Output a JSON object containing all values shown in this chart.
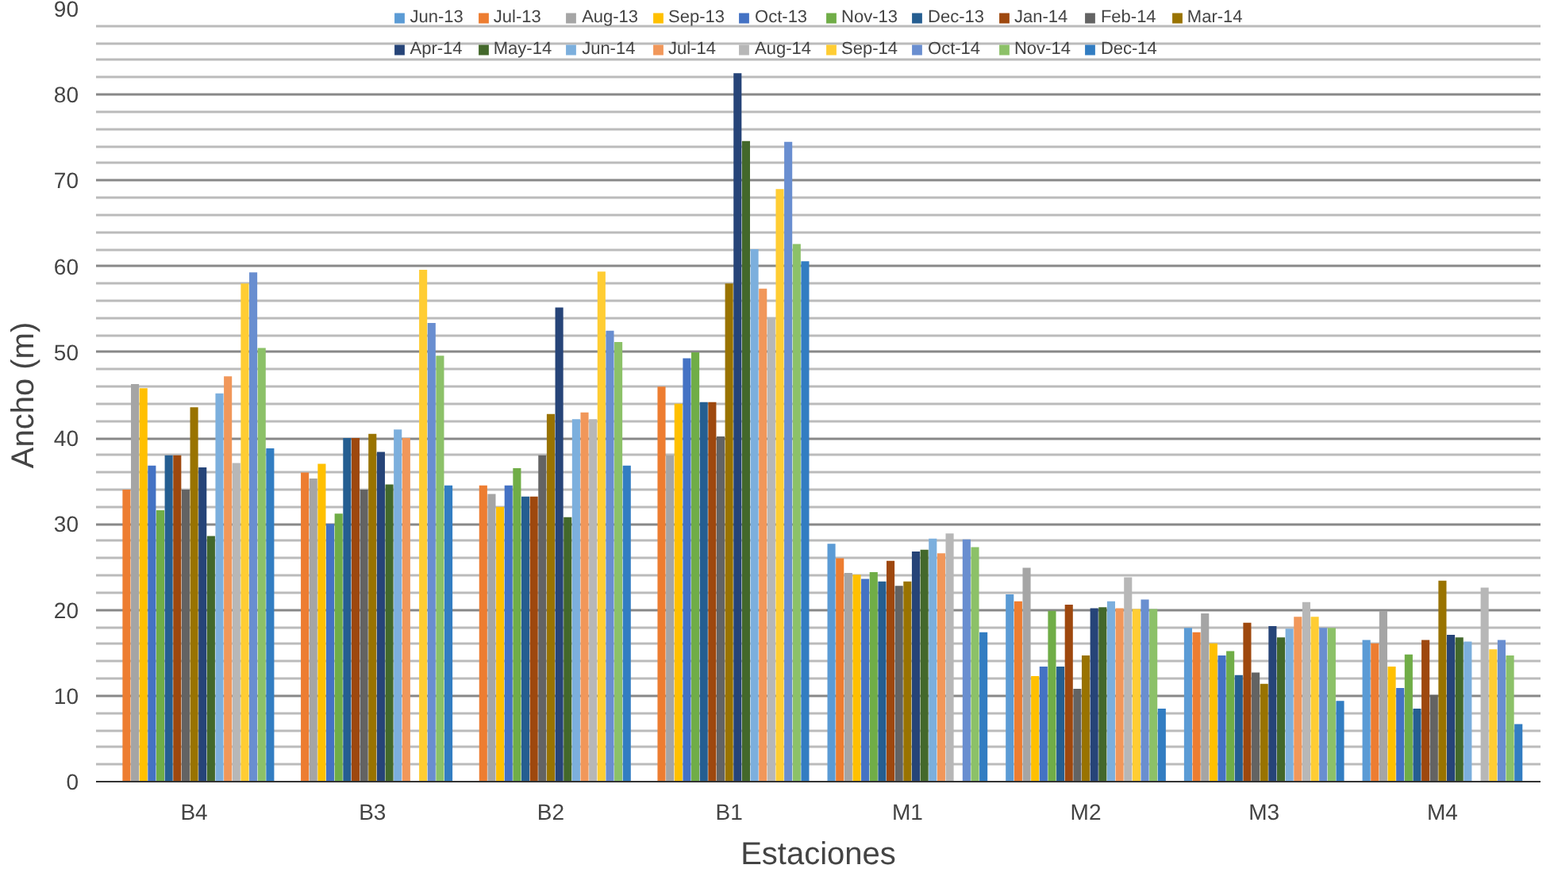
{
  "chart_data": {
    "type": "bar",
    "xlabel": "Estaciones",
    "ylabel": "Ancho (m)",
    "categories": [
      "B4",
      "B3",
      "B2",
      "B1",
      "M1",
      "M2",
      "M3",
      "M4"
    ],
    "ylim": [
      0,
      90
    ],
    "yticks": [
      0,
      10,
      20,
      30,
      40,
      50,
      60,
      70,
      80,
      90
    ],
    "grid": "y",
    "legend": "top",
    "series": [
      {
        "name": "Jun-13",
        "color": "#5b9bd5",
        "values": [
          null,
          null,
          null,
          null,
          27.7,
          21.8,
          17.9,
          16.5
        ]
      },
      {
        "name": "Jul-13",
        "color": "#ed7d31",
        "values": [
          34,
          36,
          34.5,
          46,
          26,
          21,
          17.4,
          16.1
        ]
      },
      {
        "name": "Aug-13",
        "color": "#a5a5a5",
        "values": [
          46.3,
          35.3,
          33.5,
          38,
          24.3,
          24.9,
          19.6,
          19.9
        ]
      },
      {
        "name": "Sep-13",
        "color": "#ffc000",
        "values": [
          45.8,
          37,
          32,
          44,
          24.1,
          12.3,
          16.1,
          13.4
        ]
      },
      {
        "name": "Oct-13",
        "color": "#4472c4",
        "values": [
          36.8,
          30,
          34.5,
          49.3,
          23.6,
          13.4,
          14.7,
          10.9
        ]
      },
      {
        "name": "Nov-13",
        "color": "#70ad47",
        "values": [
          31.6,
          31.2,
          36.5,
          50,
          24.4,
          19.9,
          15.2,
          14.8
        ]
      },
      {
        "name": "Dec-13",
        "color": "#255e91",
        "values": [
          38,
          40,
          33.2,
          44.2,
          23.3,
          13.4,
          12.4,
          8.5
        ]
      },
      {
        "name": "Jan-14",
        "color": "#9e480e",
        "values": [
          38,
          40,
          33.2,
          44.2,
          25.7,
          20.6,
          18.5,
          16.5
        ]
      },
      {
        "name": "Feb-14",
        "color": "#636363",
        "values": [
          34,
          34,
          38,
          40.2,
          22.8,
          10.8,
          12.7,
          10.1
        ]
      },
      {
        "name": "Mar-14",
        "color": "#997300",
        "values": [
          43.6,
          40.5,
          42.8,
          58,
          23.3,
          14.7,
          11.4,
          23.4
        ]
      },
      {
        "name": "Apr-14",
        "color": "#264478",
        "values": [
          36.6,
          38.4,
          55.2,
          82.5,
          26.8,
          20.2,
          18.1,
          17.1
        ]
      },
      {
        "name": "May-14",
        "color": "#43682b",
        "values": [
          28.6,
          34.6,
          30.8,
          74.6,
          27,
          20.3,
          16.8,
          16.8
        ]
      },
      {
        "name": "Jun-14",
        "color": "#7cafdd",
        "values": [
          45.2,
          41,
          42.2,
          62,
          28.3,
          21,
          17.8,
          16.3
        ]
      },
      {
        "name": "Jul-14",
        "color": "#f1975a",
        "values": [
          47.2,
          40,
          43,
          57.4,
          26.6,
          20.2,
          19.2,
          null
        ]
      },
      {
        "name": "Aug-14",
        "color": "#b7b7b7",
        "values": [
          37.1,
          null,
          42.2,
          54,
          28.9,
          23.8,
          20.9,
          22.6
        ]
      },
      {
        "name": "Sep-14",
        "color": "#ffcd33",
        "values": [
          58,
          59.6,
          59.4,
          69,
          null,
          20.1,
          19.2,
          15.4
        ]
      },
      {
        "name": "Oct-14",
        "color": "#698ed0",
        "values": [
          59.3,
          53.4,
          52.5,
          74.5,
          28.2,
          21.2,
          17.9,
          16.5
        ]
      },
      {
        "name": "Nov-14",
        "color": "#8cc168",
        "values": [
          50.5,
          49.6,
          51.2,
          62.6,
          27.3,
          20.1,
          17.9,
          14.7
        ]
      },
      {
        "name": "Dec-14",
        "color": "#327dc2",
        "values": [
          38.8,
          34.5,
          36.8,
          60.6,
          17.4,
          8.5,
          9.4,
          6.7
        ]
      }
    ]
  }
}
